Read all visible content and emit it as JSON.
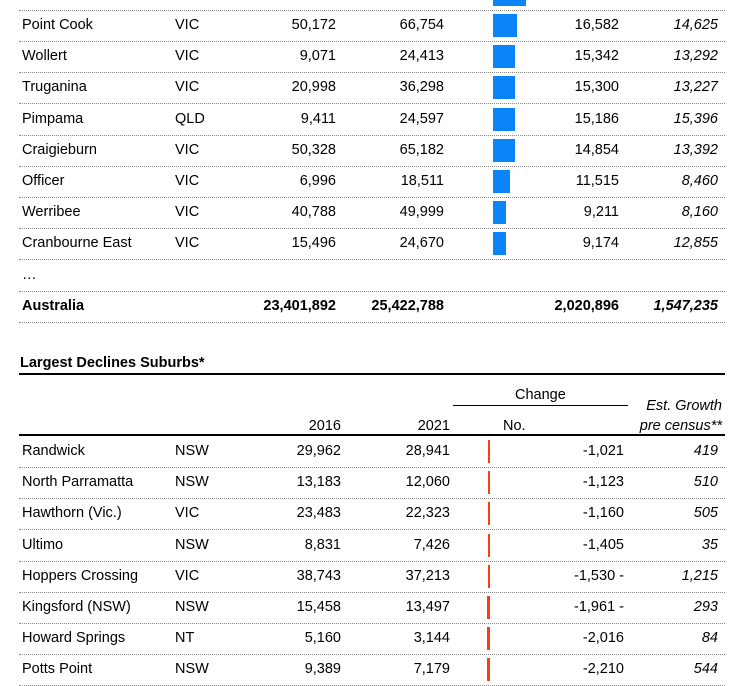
{
  "colors": {
    "growth_bar": "#0a84f7",
    "decline_bar": "#ff3b14"
  },
  "growth_table": {
    "rows": [
      {
        "suburb": "Point Cook",
        "state": "VIC",
        "y2016": "50,172",
        "y2021": "66,754",
        "change": 16582,
        "change_label": "16,582",
        "est": "14,625"
      },
      {
        "suburb": "Wollert",
        "state": "VIC",
        "y2016": "9,071",
        "y2021": "24,413",
        "change": 15342,
        "change_label": "15,342",
        "est": "13,292"
      },
      {
        "suburb": "Truganina",
        "state": "VIC",
        "y2016": "20,998",
        "y2021": "36,298",
        "change": 15300,
        "change_label": "15,300",
        "est": "13,227"
      },
      {
        "suburb": "Pimpama",
        "state": "QLD",
        "y2016": "9,411",
        "y2021": "24,597",
        "change": 15186,
        "change_label": "15,186",
        "est": "15,396"
      },
      {
        "suburb": "Craigieburn",
        "state": "VIC",
        "y2016": "50,328",
        "y2021": "65,182",
        "change": 14854,
        "change_label": "14,854",
        "est": "13,392"
      },
      {
        "suburb": "Officer",
        "state": "VIC",
        "y2016": "6,996",
        "y2021": "18,511",
        "change": 11515,
        "change_label": "11,515",
        "est": "8,460"
      },
      {
        "suburb": "Werribee",
        "state": "VIC",
        "y2016": "40,788",
        "y2021": "49,999",
        "change": 9211,
        "change_label": "9,211",
        "est": "8,160"
      },
      {
        "suburb": "Cranbourne East",
        "state": "VIC",
        "y2016": "15,496",
        "y2021": "24,670",
        "change": 9174,
        "change_label": "9,174",
        "est": "12,855"
      }
    ],
    "ellipsis": "…",
    "total": {
      "suburb": "Australia",
      "y2016": "23,401,892",
      "y2021": "25,422,788",
      "change_label": "2,020,896",
      "est": "1,547,235"
    }
  },
  "decline_table": {
    "title": "Largest Declines Suburbs*",
    "headers": {
      "change_group": "Change",
      "y2016": "2016",
      "y2021": "2021",
      "no": "No.",
      "est_line1": "Est. Growth",
      "est_line2": "pre census**"
    },
    "rows": [
      {
        "suburb": "Randwick",
        "state": "NSW",
        "y2016": "29,962",
        "y2021": "28,941",
        "change": -1021,
        "change_label": "-1,021",
        "est": "419"
      },
      {
        "suburb": "North Parramatta",
        "state": "NSW",
        "y2016": "13,183",
        "y2021": "12,060",
        "change": -1123,
        "change_label": "-1,123",
        "est": "510"
      },
      {
        "suburb": "Hawthorn (Vic.)",
        "state": "VIC",
        "y2016": "23,483",
        "y2021": "22,323",
        "change": -1160,
        "change_label": "-1,160",
        "est": "505"
      },
      {
        "suburb": "Ultimo",
        "state": "NSW",
        "y2016": "8,831",
        "y2021": "7,426",
        "change": -1405,
        "change_label": "-1,405",
        "est": "35"
      },
      {
        "suburb": "Hoppers Crossing",
        "state": "VIC",
        "y2016": "38,743",
        "y2021": "37,213",
        "change": -1530,
        "change_label": "-1,530 -",
        "est": "1,215"
      },
      {
        "suburb": "Kingsford (NSW)",
        "state": "NSW",
        "y2016": "15,458",
        "y2021": "13,497",
        "change": -1961,
        "change_label": "-1,961 -",
        "est": "293"
      },
      {
        "suburb": "Howard Springs",
        "state": "NT",
        "y2016": "5,160",
        "y2021": "3,144",
        "change": -2016,
        "change_label": "-2,016",
        "est": "84"
      },
      {
        "suburb": "Potts Point",
        "state": "NSW",
        "y2016": "9,389",
        "y2021": "7,179",
        "change": -2210,
        "change_label": "-2,210",
        "est": "544"
      }
    ]
  }
}
